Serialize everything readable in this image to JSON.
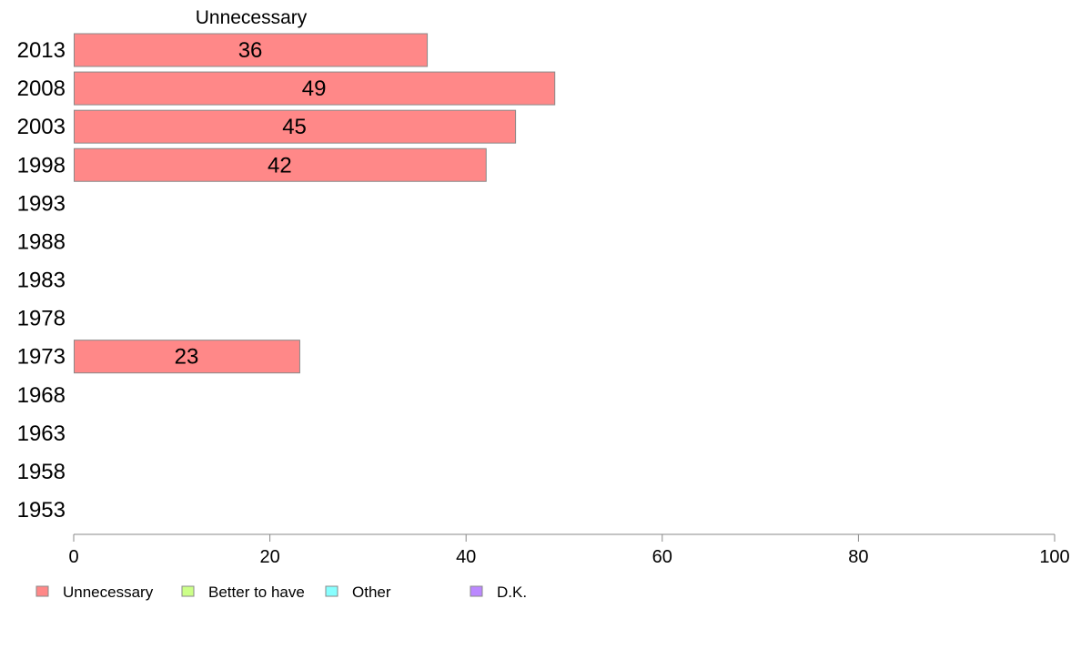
{
  "chart_data": {
    "type": "bar",
    "orientation": "horizontal",
    "title": "Unnecessary",
    "categories": [
      "2013",
      "2008",
      "2003",
      "1998",
      "1993",
      "1988",
      "1983",
      "1978",
      "1973",
      "1968",
      "1963",
      "1958",
      "1953"
    ],
    "series": [
      {
        "name": "Unnecessary",
        "values": [
          36,
          49,
          45,
          42,
          null,
          null,
          null,
          null,
          23,
          null,
          null,
          null,
          null
        ]
      }
    ],
    "xlim": [
      0,
      100
    ],
    "xticks": [
      0,
      20,
      40,
      60,
      80,
      100
    ],
    "grid": false,
    "legend": {
      "placement": "bottom-left",
      "entries": [
        "Unnecessary",
        "Better to have",
        "Other",
        "D.K."
      ]
    }
  },
  "colors": {
    "Unnecessary": "#ff8888",
    "Better to have": "#ccff88",
    "Other": "#88ffff",
    "D.K.": "#bb88ff",
    "axis": "#888888",
    "bar_border": "#888888"
  }
}
